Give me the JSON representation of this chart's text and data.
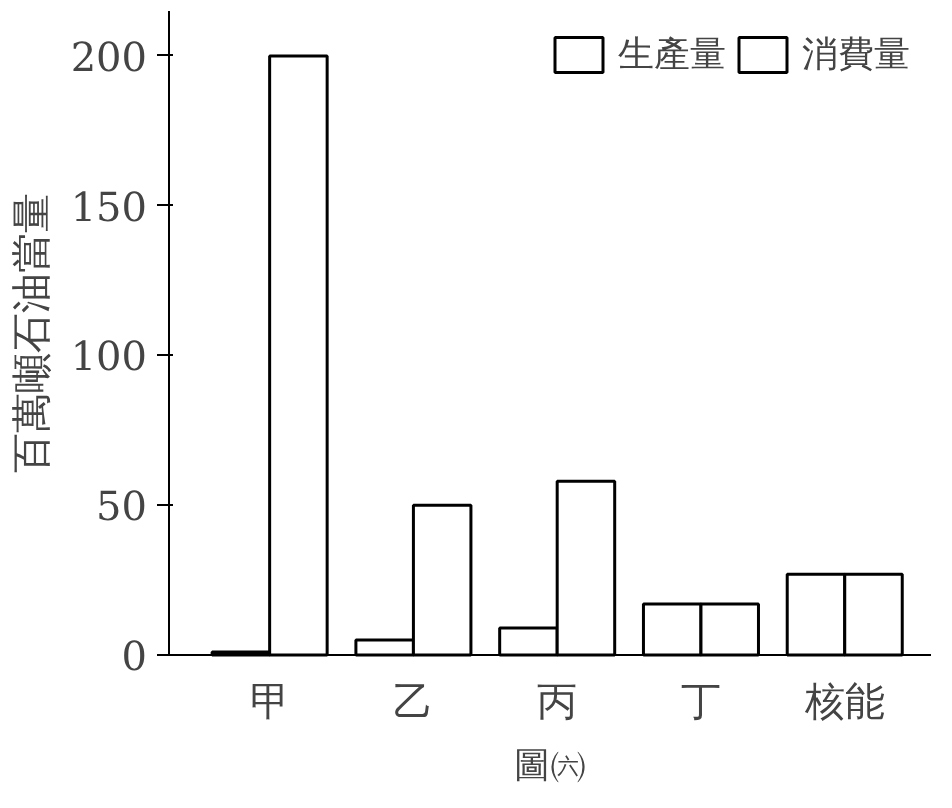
{
  "chart_data": {
    "type": "bar",
    "ylabel": "百萬噸石油當量",
    "categories": [
      "甲",
      "乙",
      "丙",
      "丁",
      "核能"
    ],
    "series": [
      {
        "name": "生產量",
        "color": "#ffffff",
        "values": [
          1,
          5,
          9,
          17,
          27
        ]
      },
      {
        "name": "消費量",
        "color": "#ffffff",
        "values": [
          200,
          50,
          58,
          17,
          27
        ]
      }
    ],
    "ylim": [
      0,
      215
    ],
    "yticks": [
      0,
      50,
      100,
      150,
      200
    ],
    "grid": false,
    "legend": "top right",
    "annotations": [
      "圖㈥"
    ]
  }
}
